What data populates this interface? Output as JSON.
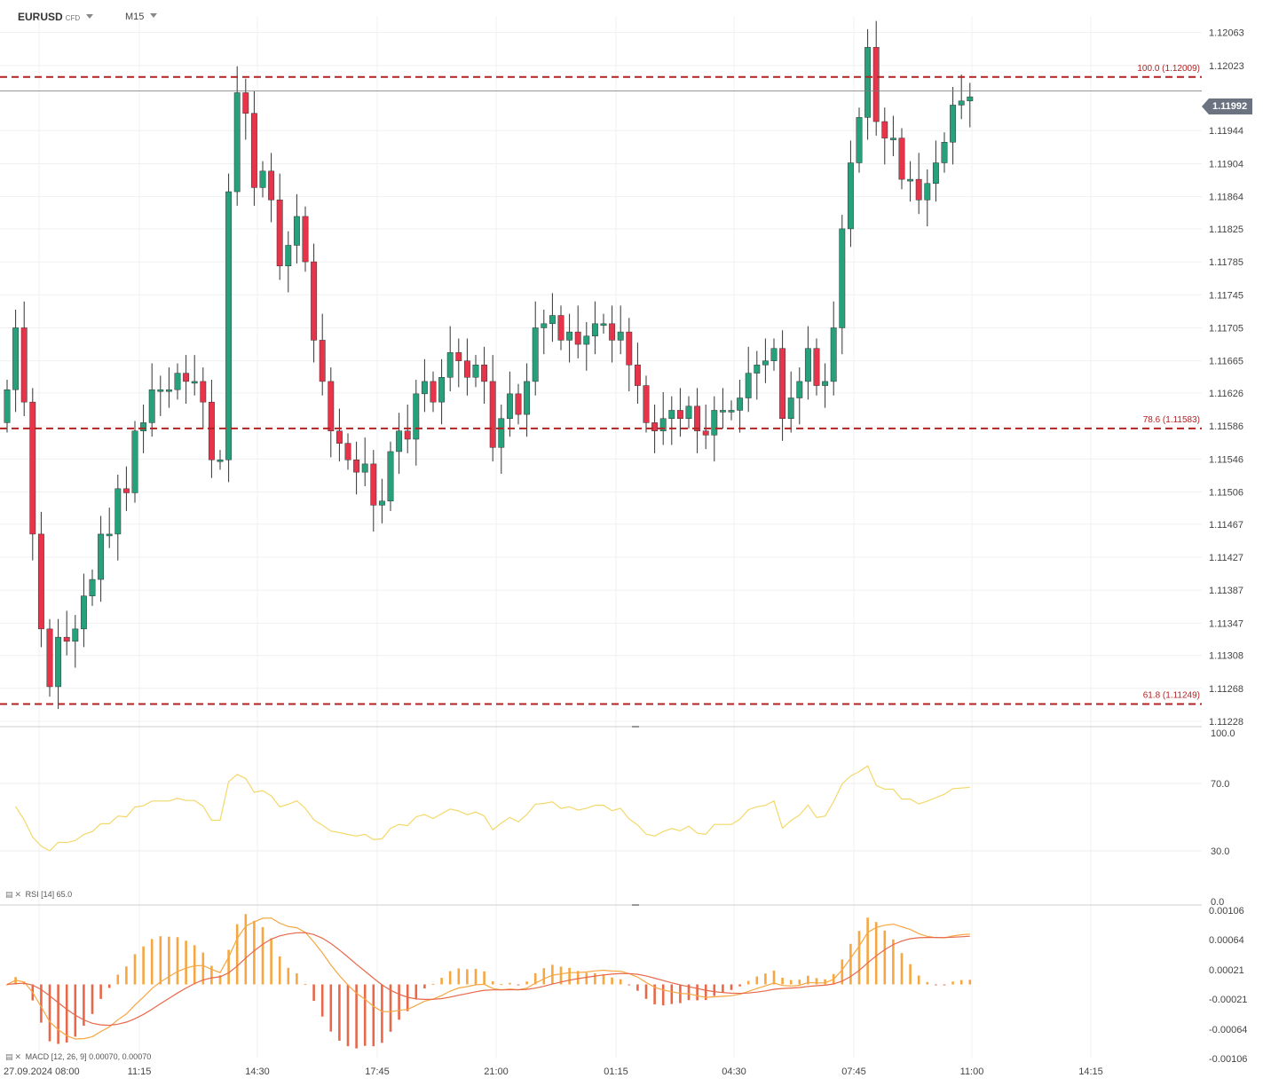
{
  "header": {
    "symbol": "EURUSD",
    "symbol_type": "CFD",
    "timeframe": "M15"
  },
  "price_axis": {
    "labels": [
      "1.12063",
      "1.12023",
      "1.11944",
      "1.11904",
      "1.11864",
      "1.11825",
      "1.11785",
      "1.11745",
      "1.11705",
      "1.11665",
      "1.11626",
      "1.11586",
      "1.11546",
      "1.11506",
      "1.11467",
      "1.11427",
      "1.11387",
      "1.11347",
      "1.11308",
      "1.11268",
      "1.11228"
    ],
    "current_price": "1.11992"
  },
  "fib_levels": [
    {
      "label": "100.0 (1.12009)",
      "price": 1.12009
    },
    {
      "label": "78.6 (1.11583)",
      "price": 1.11583
    },
    {
      "label": "61.8 (1.11249)",
      "price": 1.11249
    }
  ],
  "time_axis": {
    "labels": [
      "27.09.2024  08:00",
      "11:15",
      "14:30",
      "17:45",
      "21:00",
      "01:15",
      "04:30",
      "07:45",
      "11:00",
      "14:15"
    ]
  },
  "rsi": {
    "label": "RSI",
    "params": "[14]",
    "value": "65.0",
    "levels": [
      "100.0",
      "70.0",
      "30.0",
      "0.0"
    ]
  },
  "macd": {
    "label": "MACD",
    "params": "[12, 26, 9]",
    "values": "0.00070,  0.00070",
    "axis_labels": [
      "0.00106",
      "0.00064",
      "0.00021",
      "-0.00021",
      "-0.00064",
      "-0.00106"
    ]
  },
  "colors": {
    "bull": "#26a17b",
    "bear": "#e8344a",
    "fib": "#b22222",
    "rsi_line": "#f3d86a",
    "macd_line": "#f5a742",
    "signal_line": "#e8684a",
    "hist_pos": "#f5a742",
    "hist_neg": "#e8684a"
  },
  "chart_data": {
    "type": "candlestick",
    "timeframe": "M15",
    "ohlc_close_series": [
      1.1163,
      1.11705,
      1.11615,
      1.11455,
      1.1134,
      1.1127,
      1.1133,
      1.11325,
      1.1134,
      1.1138,
      1.114,
      1.11455,
      1.11455,
      1.1151,
      1.11505,
      1.1158,
      1.1159,
      1.1163,
      1.1163,
      1.1163,
      1.1165,
      1.1164,
      1.1164,
      1.11615,
      1.11545,
      1.11545,
      1.1187,
      1.1199,
      1.11965,
      1.11875,
      1.11895,
      1.1186,
      1.1178,
      1.11805,
      1.1184,
      1.11785,
      1.1169,
      1.1164,
      1.1158,
      1.11565,
      1.11545,
      1.1153,
      1.1154,
      1.1149,
      1.11495,
      1.11555,
      1.1158,
      1.1157,
      1.11625,
      1.1164,
      1.11615,
      1.11645,
      1.11675,
      1.11665,
      1.11645,
      1.1166,
      1.1164,
      1.1156,
      1.11595,
      1.11625,
      1.116,
      1.1164,
      1.11705,
      1.1171,
      1.1172,
      1.1169,
      1.117,
      1.11685,
      1.11695,
      1.1171,
      1.1171,
      1.1169,
      1.117,
      1.1166,
      1.11635,
      1.1159,
      1.1158,
      1.11595,
      1.11605,
      1.11595,
      1.1161,
      1.1158,
      1.11575,
      1.11605,
      1.11605,
      1.11605,
      1.1162,
      1.1165,
      1.1166,
      1.11665,
      1.1168,
      1.11595,
      1.1162,
      1.1164,
      1.1168,
      1.11635,
      1.1164,
      1.11705,
      1.11825,
      1.11905,
      1.1196,
      1.12045,
      1.11955,
      1.11935,
      1.11935,
      1.11885,
      1.11885,
      1.1186,
      1.1188,
      1.11905,
      1.1193,
      1.11975,
      1.1198,
      1.11985
    ],
    "rsi": {
      "name": "RSI [14]",
      "last": 65.0,
      "range": [
        0,
        100
      ],
      "levels": [
        30,
        70
      ]
    },
    "macd": {
      "name": "MACD [12, 26, 9]",
      "macd": 0.0007,
      "signal": 0.0007,
      "range": [
        -0.00106,
        0.00106
      ]
    }
  }
}
